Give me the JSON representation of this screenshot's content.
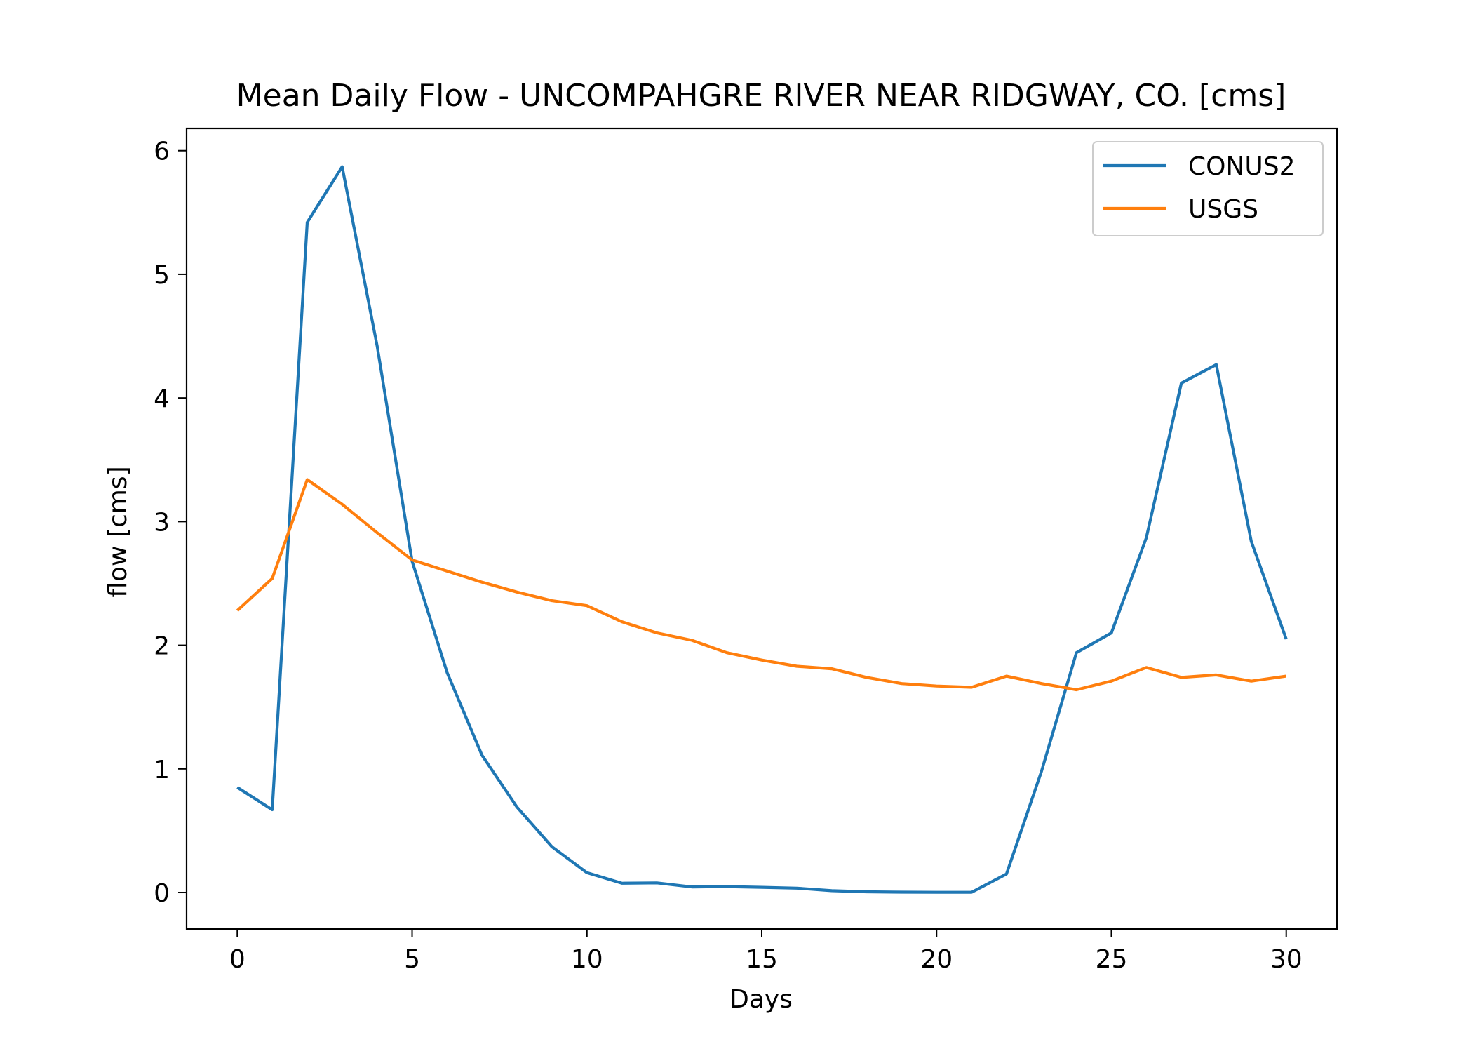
{
  "chart_data": {
    "type": "line",
    "title": "Mean Daily Flow - UNCOMPAHGRE RIVER NEAR RIDGWAY, CO. [cms]",
    "xlabel": "Days",
    "ylabel": "flow [cms]",
    "xlim": [
      -1.45,
      31.45
    ],
    "ylim": [
      -0.295,
      6.18
    ],
    "xticks": [
      0,
      5,
      10,
      15,
      20,
      25,
      30
    ],
    "yticks": [
      0,
      1,
      2,
      3,
      4,
      5,
      6
    ],
    "grid": false,
    "legend_position": "top-right",
    "x": [
      0,
      1,
      2,
      3,
      4,
      5,
      6,
      7,
      8,
      9,
      10,
      11,
      12,
      13,
      14,
      15,
      16,
      17,
      18,
      19,
      20,
      21,
      22,
      23,
      24,
      25,
      26,
      27,
      28,
      29,
      30
    ],
    "series": [
      {
        "name": "CONUS2",
        "color": "#1f77b4",
        "values": [
          0.85,
          0.67,
          5.42,
          5.87,
          4.42,
          2.68,
          1.78,
          1.11,
          0.69,
          0.37,
          0.16,
          0.075,
          0.078,
          0.045,
          0.048,
          0.042,
          0.035,
          0.015,
          0.006,
          0.003,
          0.002,
          0.002,
          0.15,
          0.98,
          1.94,
          2.1,
          2.87,
          4.12,
          4.27,
          2.84,
          2.05
        ]
      },
      {
        "name": "USGS",
        "color": "#ff7f0e",
        "values": [
          2.28,
          2.54,
          3.34,
          3.14,
          2.91,
          2.69,
          2.6,
          2.51,
          2.43,
          2.36,
          2.32,
          2.19,
          2.1,
          2.04,
          1.94,
          1.88,
          1.83,
          1.81,
          1.74,
          1.69,
          1.67,
          1.66,
          1.75,
          1.69,
          1.64,
          1.71,
          1.82,
          1.74,
          1.76,
          1.71,
          1.75
        ]
      }
    ]
  }
}
